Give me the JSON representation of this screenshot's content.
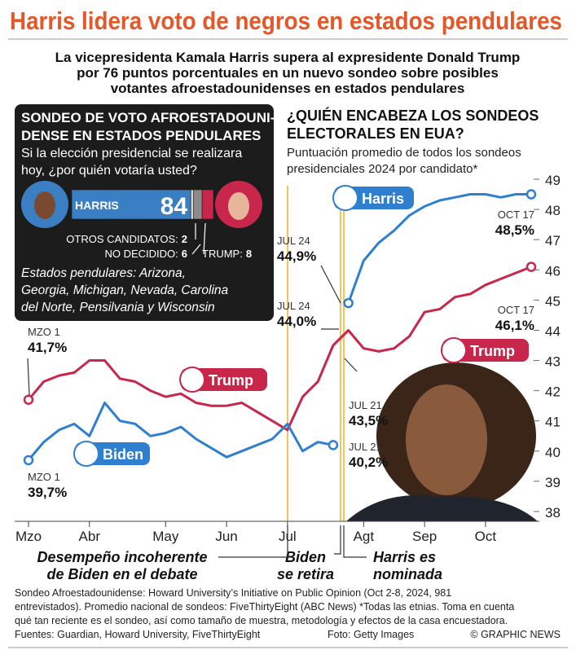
{
  "header": {
    "title": "Harris lidera voto de negros en estados pendulares",
    "subtitle": [
      "La vicepresidenta Kamala Harris supera al expresidente Donald Trump",
      "por 76 puntos porcentuales en un nuevo sondeo sobre posibles",
      "votantes afroestadounidenses en estados pendulares"
    ]
  },
  "chart_data": [
    {
      "type": "bar",
      "title": [
        "SONDEO DE VOTO AFROESTADOUNI-",
        "DENSE EN ESTADOS PENDULARES"
      ],
      "subtitle": [
        "Si la elección presidencial se realizara",
        "hoy, ¿por quién votaría usted?"
      ],
      "series": [
        {
          "name": "HARRIS",
          "color": "#3a7fc4",
          "values": [
            84
          ]
        },
        {
          "name": "OTROS CANDIDATOS:",
          "color": "#d6d6d6",
          "values": [
            2
          ]
        },
        {
          "name": "NO DECIDIDO:",
          "color": "#8c8c8c",
          "values": [
            6
          ]
        },
        {
          "name": "TRUMP:",
          "color": "#c8264a",
          "values": [
            8
          ]
        }
      ],
      "note": [
        "Estados pendulares: Arizona,",
        "Georgia, Michigan, Nevada, Carolina",
        "del Norte, Pensilvania y Wisconsin"
      ]
    },
    {
      "type": "line",
      "title": [
        "¿QUIÉN ENCABEZA LOS SONDEOS",
        "ELECTORALES EN EUA?"
      ],
      "subtitle": [
        "Puntuación promedio de todos los sondeos",
        "presidenciales 2024 por candidato*"
      ],
      "categories": [
        "Mzo",
        null,
        null,
        null,
        "Abr",
        null,
        null,
        null,
        null,
        "May",
        null,
        null,
        null,
        "Jun",
        null,
        null,
        null,
        "Jul",
        null,
        null,
        null,
        null,
        "Agt",
        null,
        null,
        null,
        "Sep",
        null,
        null,
        null,
        "Oct",
        null,
        null,
        null
      ],
      "series": [
        {
          "name": "Trump",
          "color": "#c8264a",
          "values": [
            41.7,
            42.3,
            42.5,
            42.6,
            43.0,
            43.0,
            42.4,
            42.3,
            42.0,
            41.8,
            41.9,
            41.6,
            41.5,
            41.5,
            41.6,
            41.3,
            41.0,
            40.7,
            41.8,
            42.3,
            43.5,
            44.0,
            43.4,
            43.3,
            43.4,
            43.8,
            44.6,
            44.7,
            45.1,
            45.2,
            45.5,
            45.7,
            45.9,
            46.1
          ]
        },
        {
          "name": "Biden",
          "color": "#2f7fd0",
          "values": [
            39.7,
            40.3,
            40.7,
            40.9,
            40.5,
            41.6,
            41.0,
            40.9,
            40.5,
            40.6,
            40.8,
            40.4,
            40.1,
            39.8,
            40.0,
            40.2,
            40.4,
            40.9,
            40.0,
            40.3,
            40.2,
            null,
            null,
            null,
            null,
            null,
            null,
            null,
            null,
            null,
            null,
            null,
            null,
            null
          ]
        },
        {
          "name": "Harris",
          "color": "#2f7fd0",
          "values": [
            null,
            null,
            null,
            null,
            null,
            null,
            null,
            null,
            null,
            null,
            null,
            null,
            null,
            null,
            null,
            null,
            null,
            null,
            null,
            null,
            null,
            44.9,
            46.3,
            46.9,
            47.3,
            47.8,
            48.1,
            48.3,
            48.4,
            48.5,
            48.5,
            48.4,
            48.5,
            48.5
          ]
        }
      ],
      "ylim": [
        38,
        49
      ],
      "yticks": [
        38,
        39,
        40,
        41,
        42,
        43,
        44,
        45,
        46,
        47,
        48,
        49
      ],
      "annotations": [
        [
          "MZO 1",
          "41,7%"
        ],
        [
          "MZO 1",
          "39,7%"
        ],
        [
          "JUL 24",
          "44,9%"
        ],
        [
          "JUL 24",
          "44,0%"
        ],
        [
          "JUL 21",
          "43,5%"
        ],
        [
          "JUL 21",
          "40,2%"
        ],
        [
          "OCT 17",
          "48,5%"
        ],
        [
          "OCT 17",
          "46,1%"
        ]
      ],
      "events": [
        [
          "Desempeño incoherente",
          "de Biden en el debate"
        ],
        [
          "Biden",
          "se retira"
        ],
        [
          "Harris es",
          "nominada"
        ]
      ]
    }
  ],
  "footer": {
    "notes": [
      "Sondeo Afroestadounidense: Howard University’s Initiative on Public Opinion (Oct 2-8, 2024, 981",
      "entrevistados). Promedio nacional de sondeos: FiveThirtyEight (ABC News)  *Todas las etnias. Toma en cuenta",
      "qué tan reciente es el sondeo, así como tamaño de muestra, metodología y efectos de la casa encuestadora."
    ],
    "sources": "Fuentes: Guardian, Howard University, FiveThirtyEight",
    "photo": "Foto: Getty Images",
    "credit": "© GRAPHIC NEWS"
  }
}
